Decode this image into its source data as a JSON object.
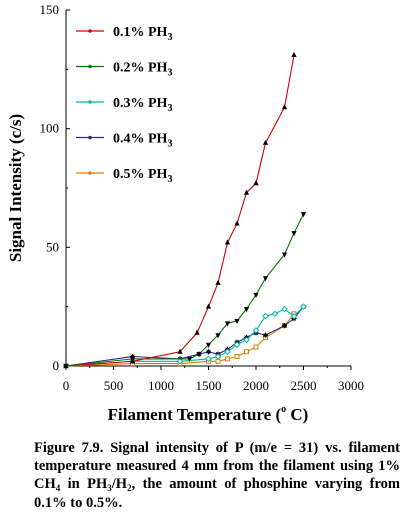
{
  "chart_data": {
    "type": "line",
    "xlabel": "Filament Temperature (",
    "xlabel_unit_sup": "o",
    "xlabel_unit": " C)",
    "ylabel": "Signal Intensity (c/s)",
    "xlim": [
      0,
      3000
    ],
    "ylim": [
      0,
      150
    ],
    "xticks": [
      "0",
      "500",
      "1000",
      "1500",
      "2000",
      "2500",
      "3000"
    ],
    "yticks": [
      "0",
      "50",
      "100",
      "150"
    ],
    "grid": false,
    "legend_position": "top-left",
    "series": [
      {
        "name": "0.1% PH",
        "name_sub": "3",
        "color": "#d40000",
        "marker": "triangle-up",
        "points": [
          [
            0,
            0
          ],
          [
            700,
            2
          ],
          [
            1200,
            6
          ],
          [
            1380,
            14
          ],
          [
            1500,
            25
          ],
          [
            1600,
            35
          ],
          [
            1700,
            52
          ],
          [
            1800,
            60
          ],
          [
            1900,
            73
          ],
          [
            2000,
            77
          ],
          [
            2100,
            94
          ],
          [
            2300,
            109
          ],
          [
            2400,
            131
          ]
        ]
      },
      {
        "name": "0.2% PH",
        "name_sub": "3",
        "color": "#007a00",
        "marker": "triangle-down",
        "points": [
          [
            0,
            0
          ],
          [
            700,
            3
          ],
          [
            1300,
            3
          ],
          [
            1400,
            5
          ],
          [
            1500,
            9
          ],
          [
            1600,
            13
          ],
          [
            1700,
            18
          ],
          [
            1800,
            19
          ],
          [
            1900,
            24
          ],
          [
            2000,
            30
          ],
          [
            2100,
            37
          ],
          [
            2300,
            47
          ],
          [
            2400,
            56
          ],
          [
            2500,
            64
          ]
        ]
      },
      {
        "name": "0.3% PH",
        "name_sub": "3",
        "color": "#00b8a8",
        "marker": "diamond",
        "points": [
          [
            0,
            0
          ],
          [
            700,
            2
          ],
          [
            1200,
            2
          ],
          [
            1500,
            3
          ],
          [
            1600,
            4
          ],
          [
            1700,
            6
          ],
          [
            1800,
            9
          ],
          [
            1900,
            11
          ],
          [
            2000,
            15
          ],
          [
            2100,
            21
          ],
          [
            2200,
            22
          ],
          [
            2300,
            24
          ],
          [
            2400,
            21
          ],
          [
            2500,
            25
          ]
        ]
      },
      {
        "name": "0.4% PH",
        "name_sub": "3",
        "color": "#24249c",
        "marker": "star",
        "points": [
          [
            0,
            0
          ],
          [
            700,
            4
          ],
          [
            1200,
            3
          ],
          [
            1400,
            5
          ],
          [
            1500,
            6
          ],
          [
            1600,
            5
          ],
          [
            1700,
            7
          ],
          [
            1800,
            10
          ],
          [
            1900,
            12
          ],
          [
            2000,
            14
          ],
          [
            2100,
            13
          ],
          [
            2300,
            17
          ],
          [
            2400,
            20
          ],
          [
            2500,
            25
          ]
        ]
      },
      {
        "name": "0.5% PH",
        "name_sub": "3",
        "color": "#e08000",
        "marker": "square",
        "points": [
          [
            0,
            0
          ],
          [
            700,
            1
          ],
          [
            1200,
            1
          ],
          [
            1500,
            2
          ],
          [
            1600,
            2
          ],
          [
            1700,
            3
          ],
          [
            1800,
            4
          ],
          [
            1900,
            6
          ],
          [
            2000,
            8
          ],
          [
            2100,
            12
          ],
          [
            2300,
            17
          ],
          [
            2400,
            22
          ]
        ]
      }
    ]
  },
  "caption": {
    "part1": "Figure 7.9. Signal intensity of P (m/e = 31) vs. filament temperature measured 4 mm from the filament using 1% CH",
    "sub1": "4",
    "part2": " in PH",
    "sub2": "3",
    "part3": "/H",
    "sub3": "2",
    "part4": ", the amount of phosphine varying from 0.1% to 0.5%."
  }
}
